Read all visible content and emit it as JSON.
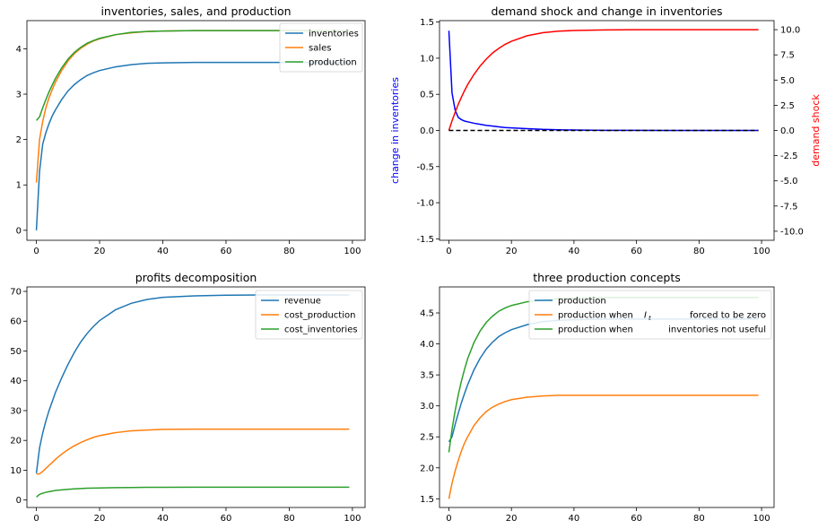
{
  "chart_data": [
    {
      "type": "line",
      "title": "inventories, sales, and production",
      "xlabel": "",
      "ylabel": "",
      "xlim": [
        -3,
        104
      ],
      "ylim": [
        -0.22,
        4.62
      ],
      "xticks": [
        0,
        20,
        40,
        60,
        80,
        100
      ],
      "yticks": [
        0,
        1,
        2,
        3,
        4
      ],
      "legend": "top-right",
      "x": [
        0,
        1,
        2,
        3,
        4,
        5,
        6,
        8,
        10,
        12,
        14,
        16,
        18,
        20,
        25,
        30,
        35,
        40,
        50,
        60,
        70,
        80,
        90,
        99
      ],
      "series": [
        {
          "name": "inventories",
          "color": "#1f77b4",
          "values": [
            0.0,
            1.3,
            1.9,
            2.15,
            2.35,
            2.52,
            2.65,
            2.88,
            3.07,
            3.21,
            3.32,
            3.41,
            3.47,
            3.52,
            3.6,
            3.65,
            3.68,
            3.69,
            3.7,
            3.7,
            3.7,
            3.7,
            3.7,
            3.7
          ]
        },
        {
          "name": "sales",
          "color": "#ff7f0e",
          "values": [
            1.05,
            2.0,
            2.4,
            2.7,
            2.92,
            3.1,
            3.26,
            3.52,
            3.73,
            3.89,
            4.01,
            4.1,
            4.17,
            4.22,
            4.31,
            4.35,
            4.38,
            4.39,
            4.4,
            4.4,
            4.4,
            4.4,
            4.4,
            4.4
          ]
        },
        {
          "name": "production",
          "color": "#2ca02c",
          "values": [
            2.42,
            2.5,
            2.7,
            2.88,
            3.05,
            3.2,
            3.34,
            3.58,
            3.77,
            3.92,
            4.03,
            4.12,
            4.18,
            4.23,
            4.31,
            4.36,
            4.38,
            4.39,
            4.4,
            4.4,
            4.4,
            4.4,
            4.4,
            4.4
          ]
        }
      ]
    },
    {
      "type": "line",
      "title": "demand shock and change in inventories",
      "xlabel": "",
      "ylabel": "change in inventories",
      "ylabel_right": "demand shock",
      "xlim": [
        -3,
        104
      ],
      "ylim": [
        -1.52,
        1.52
      ],
      "ylim_right": [
        -10.9,
        10.9
      ],
      "xticks": [
        0,
        20,
        40,
        60,
        80,
        100
      ],
      "yticks": [
        -1.5,
        -1.0,
        -0.5,
        0.0,
        0.5,
        1.0,
        1.5
      ],
      "yticks_right": [
        -10.0,
        -7.5,
        -5.0,
        -2.5,
        0.0,
        2.5,
        5.0,
        7.5,
        10.0
      ],
      "legend": "none",
      "x": [
        0,
        1,
        2,
        3,
        4,
        5,
        6,
        8,
        10,
        12,
        14,
        16,
        18,
        20,
        25,
        30,
        35,
        40,
        50,
        60,
        70,
        80,
        90,
        99
      ],
      "series": [
        {
          "axis": "left",
          "color": "#0000ff",
          "values": [
            1.38,
            0.52,
            0.28,
            0.18,
            0.15,
            0.13,
            0.12,
            0.1,
            0.085,
            0.07,
            0.06,
            0.05,
            0.04,
            0.035,
            0.025,
            0.015,
            0.01,
            0.006,
            0.002,
            0.001,
            0.0,
            0.0,
            0.0,
            0.0
          ]
        },
        {
          "axis": "right",
          "color": "#ff0000",
          "values": [
            0.0,
            0.95,
            1.8,
            2.6,
            3.3,
            3.95,
            4.55,
            5.55,
            6.4,
            7.1,
            7.7,
            8.15,
            8.55,
            8.85,
            9.4,
            9.7,
            9.85,
            9.92,
            9.98,
            10.0,
            10.0,
            10.0,
            10.0,
            10.0
          ]
        },
        {
          "axis": "left",
          "color": "#000000",
          "dashed": true,
          "values": [
            0,
            0,
            0,
            0,
            0,
            0,
            0,
            0,
            0,
            0,
            0,
            0,
            0,
            0,
            0,
            0,
            0,
            0,
            0,
            0,
            0,
            0,
            0,
            0
          ]
        }
      ]
    },
    {
      "type": "line",
      "title": "profits decomposition",
      "xlabel": "",
      "ylabel": "",
      "xlim": [
        -3,
        104
      ],
      "ylim": [
        -2.5,
        71.5
      ],
      "xticks": [
        0,
        20,
        40,
        60,
        80,
        100
      ],
      "yticks": [
        0,
        10,
        20,
        30,
        40,
        50,
        60,
        70
      ],
      "legend": "top-right",
      "x": [
        0,
        1,
        2,
        3,
        4,
        5,
        6,
        8,
        10,
        12,
        14,
        16,
        18,
        20,
        25,
        30,
        35,
        40,
        50,
        60,
        70,
        80,
        90,
        99
      ],
      "series": [
        {
          "name": "revenue",
          "color": "#1f77b4",
          "values": [
            9.0,
            17.5,
            22.5,
            26.5,
            30.0,
            33.0,
            36.0,
            41.0,
            45.5,
            49.5,
            53.0,
            55.8,
            58.2,
            60.2,
            63.8,
            66.0,
            67.3,
            68.0,
            68.5,
            68.7,
            68.8,
            68.8,
            68.8,
            68.8
          ]
        },
        {
          "name": "cost_production",
          "color": "#ff7f0e",
          "values": [
            8.7,
            8.8,
            9.6,
            10.6,
            11.6,
            12.6,
            13.6,
            15.4,
            16.9,
            18.2,
            19.3,
            20.2,
            21.0,
            21.6,
            22.6,
            23.2,
            23.5,
            23.7,
            23.8,
            23.8,
            23.8,
            23.8,
            23.8,
            23.8
          ]
        },
        {
          "name": "cost_inventories",
          "color": "#2ca02c",
          "values": [
            1.0,
            1.9,
            2.3,
            2.6,
            2.8,
            3.0,
            3.2,
            3.4,
            3.6,
            3.75,
            3.85,
            3.95,
            4.0,
            4.05,
            4.15,
            4.2,
            4.25,
            4.27,
            4.3,
            4.3,
            4.3,
            4.3,
            4.3,
            4.3
          ]
        }
      ]
    },
    {
      "type": "line",
      "title": "three production concepts",
      "xlabel": "",
      "ylabel": "",
      "xlim": [
        -3,
        104
      ],
      "ylim": [
        1.36,
        4.92
      ],
      "xticks": [
        0,
        20,
        40,
        60,
        80,
        100
      ],
      "yticks": [
        1.5,
        2.0,
        2.5,
        3.0,
        3.5,
        4.0,
        4.5
      ],
      "legend": "top-right",
      "x": [
        0,
        1,
        2,
        3,
        4,
        5,
        6,
        8,
        10,
        12,
        14,
        16,
        18,
        20,
        25,
        30,
        35,
        40,
        50,
        60,
        70,
        80,
        90,
        99
      ],
      "series": [
        {
          "name": "production",
          "color": "#1f77b4",
          "legend_parts": [
            "production"
          ],
          "values": [
            2.42,
            2.5,
            2.7,
            2.88,
            3.05,
            3.2,
            3.34,
            3.58,
            3.77,
            3.92,
            4.03,
            4.12,
            4.18,
            4.23,
            4.31,
            4.36,
            4.38,
            4.39,
            4.4,
            4.4,
            4.4,
            4.4,
            4.4,
            4.4
          ]
        },
        {
          "name": "production when I_t forced to be zero",
          "color": "#ff7f0e",
          "legend_parts": [
            "production when ",
            "I",
            "t",
            "forced to be zero"
          ],
          "values": [
            1.5,
            1.75,
            1.95,
            2.12,
            2.27,
            2.4,
            2.5,
            2.68,
            2.81,
            2.91,
            2.98,
            3.03,
            3.07,
            3.1,
            3.14,
            3.16,
            3.17,
            3.17,
            3.17,
            3.17,
            3.17,
            3.17,
            3.17,
            3.17
          ]
        },
        {
          "name": "production when inventories not useful",
          "color": "#2ca02c",
          "legend_parts": [
            "production when",
            "inventories not useful"
          ],
          "values": [
            2.25,
            2.62,
            2.92,
            3.18,
            3.4,
            3.59,
            3.76,
            4.02,
            4.21,
            4.35,
            4.45,
            4.53,
            4.58,
            4.62,
            4.68,
            4.71,
            4.73,
            4.74,
            4.75,
            4.75,
            4.75,
            4.75,
            4.75,
            4.75
          ]
        }
      ]
    }
  ]
}
